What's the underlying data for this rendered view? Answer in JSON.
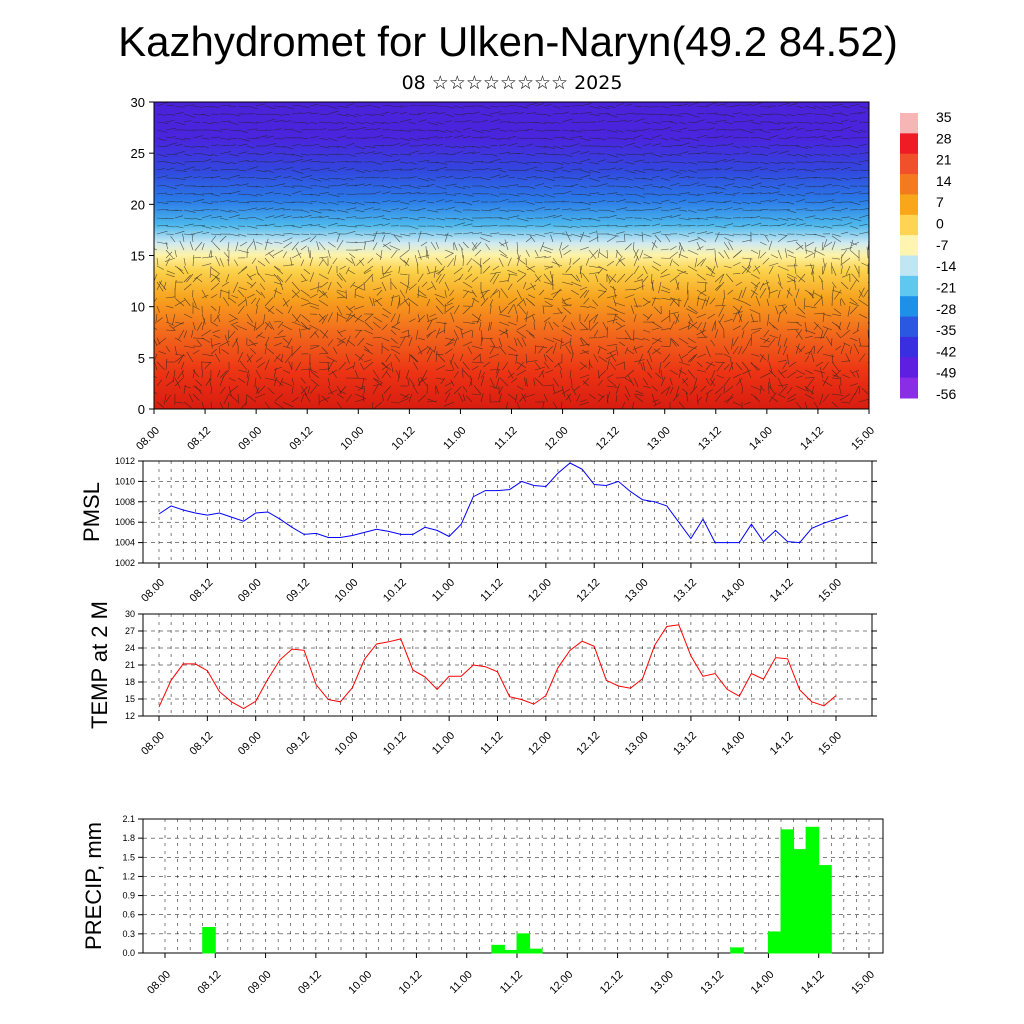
{
  "title": "Kazhydromet for Ulken-Naryn(49.2 84.52)",
  "subtitle": "08 ☆☆☆☆☆☆☆☆ 2025",
  "x_ticks": [
    "08.00",
    "08.12",
    "09.00",
    "09.12",
    "10.00",
    "10.12",
    "11.00",
    "11.12",
    "12.00",
    "12.12",
    "13.00",
    "13.12",
    "14.00",
    "14.12",
    "15.00"
  ],
  "colorbar": {
    "labels": [
      "35",
      "28",
      "21",
      "14",
      "7",
      "0",
      "-7",
      "-14",
      "-21",
      "-28",
      "-35",
      "-42",
      "-49",
      "-56"
    ],
    "colors": [
      "#f6b6b6",
      "#ee1c24",
      "#f0502a",
      "#f47a20",
      "#f9a61a",
      "#ffd454",
      "#fff5b0",
      "#bfe6f2",
      "#5fc8ef",
      "#1e90e8",
      "#2a58e0",
      "#3a2fe0",
      "#5f1fe0",
      "#8a2ee6"
    ]
  },
  "chart_data": [
    {
      "type": "heatmap",
      "title": "",
      "ylabel": "",
      "ylim": [
        0,
        30
      ],
      "y_ticks": [
        "0",
        "5",
        "10",
        "15",
        "20",
        "25",
        "30"
      ],
      "description_values": {
        "levels": [
          0,
          5,
          10,
          15,
          20,
          25,
          30
        ],
        "temperature_profile": [
          25,
          20,
          14,
          3,
          -25,
          -50,
          -56
        ]
      }
    },
    {
      "type": "line",
      "ylabel": "PMSL",
      "ylim": [
        1002,
        1012
      ],
      "y_ticks": [
        "1012",
        "1010",
        "1008",
        "1006",
        "1004",
        "1002"
      ],
      "color": "#0000ff",
      "values": [
        1006.8,
        1007.6,
        1007.2,
        1006.9,
        1006.7,
        1006.9,
        1006.5,
        1006.1,
        1006.9,
        1007.0,
        1006.3,
        1005.5,
        1004.8,
        1004.9,
        1004.5,
        1004.5,
        1004.7,
        1005.0,
        1005.3,
        1005.1,
        1004.8,
        1004.8,
        1005.5,
        1005.2,
        1004.6,
        1005.8,
        1008.5,
        1009.1,
        1009.1,
        1009.2,
        1010.0,
        1009.6,
        1009.5,
        1010.8,
        1011.8,
        1011.2,
        1009.7,
        1009.6,
        1010.0,
        1009.0,
        1008.2,
        1008.0,
        1007.6,
        1006.0,
        1004.4,
        1006.3,
        1004.0,
        1004.0,
        1004.0,
        1005.8,
        1004.1,
        1005.2,
        1004.1,
        1004.0,
        1005.4,
        1005.9,
        1006.3,
        1006.7
      ]
    },
    {
      "type": "line",
      "ylabel": "TEMP at 2 M",
      "ylim": [
        12,
        30
      ],
      "y_ticks": [
        "30",
        "27",
        "24",
        "21",
        "18",
        "15",
        "12"
      ],
      "color": "#ff0000",
      "values": [
        13.6,
        18.3,
        21.2,
        21.2,
        20.0,
        16.3,
        14.5,
        13.3,
        14.6,
        18.5,
        21.9,
        23.8,
        23.6,
        17.5,
        14.9,
        14.5,
        17.0,
        22.0,
        24.7,
        25.1,
        25.6,
        20.1,
        18.9,
        16.7,
        19.0,
        19.0,
        21.0,
        20.7,
        19.8,
        15.4,
        14.9,
        14.1,
        15.6,
        20.5,
        23.6,
        25.2,
        24.3,
        18.3,
        17.3,
        16.9,
        18.6,
        24.5,
        27.8,
        28.1,
        22.6,
        19.0,
        19.5,
        16.7,
        15.5,
        19.5,
        18.5,
        22.3,
        22.1,
        16.6,
        14.5,
        13.8,
        15.6
      ]
    },
    {
      "type": "bar",
      "ylabel": "PRECIP, mm",
      "ylim": [
        0,
        2.1
      ],
      "y_ticks": [
        "2.1",
        "1.8",
        "1.5",
        "1.2",
        "0.9",
        "0.6",
        "0.3",
        "0.0"
      ],
      "color": "#00ff00",
      "bars": [
        {
          "step": 3,
          "value": 0.4
        },
        {
          "step": 26,
          "value": 0.12
        },
        {
          "step": 27,
          "value": 0.04
        },
        {
          "step": 28,
          "value": 0.3
        },
        {
          "step": 29,
          "value": 0.06
        },
        {
          "step": 45,
          "value": 0.08
        },
        {
          "step": 48,
          "value": 0.33
        },
        {
          "step": 49,
          "value": 1.93
        },
        {
          "step": 50,
          "value": 1.62
        },
        {
          "step": 51,
          "value": 1.97
        },
        {
          "step": 52,
          "value": 1.37
        }
      ]
    }
  ]
}
